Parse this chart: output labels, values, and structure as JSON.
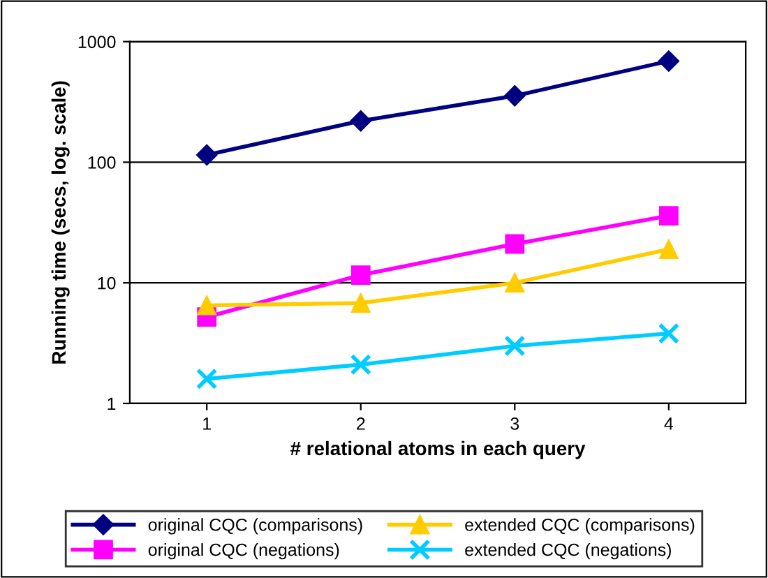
{
  "chart_data": {
    "type": "line",
    "xlabel": "# relational atoms in each query",
    "ylabel": "Running time (secs, log. scale)",
    "categories": [
      "1",
      "2",
      "3",
      "4"
    ],
    "log": "y",
    "ylim": [
      1,
      1000
    ],
    "yticks": [
      1,
      10,
      100,
      1000
    ],
    "grid": "y",
    "legend": "bottom",
    "series": [
      {
        "name": "original CQC (comparisons)",
        "color": "#000080",
        "marker": "diamond",
        "values": [
          115,
          220,
          355,
          690
        ]
      },
      {
        "name": "original CQC (negations)",
        "color": "#ff00ff",
        "marker": "square",
        "values": [
          5.2,
          11.6,
          21,
          36
        ]
      },
      {
        "name": "extended CQC (comparisons)",
        "color": "#ffcc00",
        "marker": "triangle",
        "values": [
          6.5,
          6.8,
          10,
          19
        ]
      },
      {
        "name": "extended CQC (negations)",
        "color": "#00ccff",
        "marker": "cross",
        "values": [
          1.6,
          2.1,
          3.0,
          3.8
        ]
      }
    ]
  }
}
